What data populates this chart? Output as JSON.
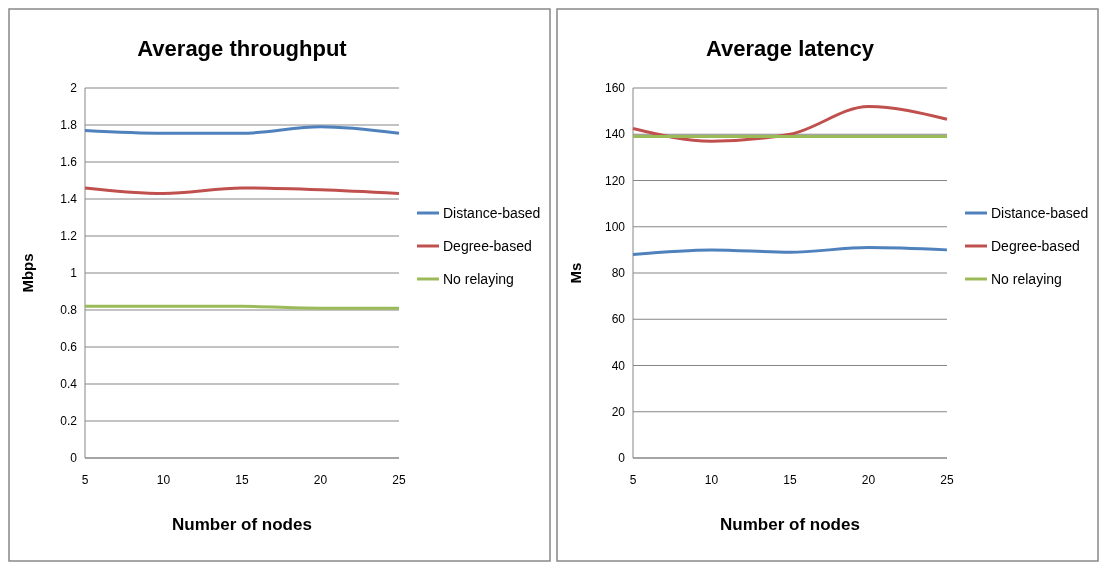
{
  "chart_data": [
    {
      "type": "line",
      "title": "Average throughput",
      "xlabel": "Number of nodes",
      "ylabel": "Mbps",
      "x": [
        5,
        10,
        15,
        20,
        25
      ],
      "xlim": [
        5,
        25
      ],
      "xticks": [
        5,
        10,
        15,
        20,
        25
      ],
      "ylim": [
        0,
        2
      ],
      "yticks": [
        0,
        0.2,
        0.4,
        0.6,
        0.8,
        1,
        1.2,
        1.4,
        1.6,
        1.8,
        2
      ],
      "grid": "y",
      "legend": "right",
      "marker": "none",
      "line_style": "solid",
      "series": [
        {
          "name": "Distance-based",
          "color": "#4f81bd",
          "values": [
            1.77,
            1.755,
            1.755,
            1.79,
            1.755
          ]
        },
        {
          "name": "Degree-based",
          "color": "#c0504d",
          "values": [
            1.46,
            1.43,
            1.46,
            1.45,
            1.43
          ]
        },
        {
          "name": "No relaying",
          "color": "#9bbb59",
          "values": [
            0.82,
            0.82,
            0.82,
            0.81,
            0.81
          ]
        }
      ]
    },
    {
      "type": "line",
      "title": "Average latency",
      "xlabel": "Number of nodes",
      "ylabel": "Ms",
      "x": [
        5,
        10,
        15,
        20,
        25
      ],
      "xlim": [
        5,
        25
      ],
      "xticks": [
        5,
        10,
        15,
        20,
        25
      ],
      "ylim": [
        0,
        160
      ],
      "yticks": [
        0,
        20,
        40,
        60,
        80,
        100,
        120,
        140,
        160
      ],
      "grid": "y",
      "legend": "right",
      "marker": "none",
      "line_style": "solid",
      "series": [
        {
          "name": "Distance-based",
          "color": "#4f81bd",
          "values": [
            88,
            90,
            89,
            91,
            90
          ]
        },
        {
          "name": "Degree-based",
          "color": "#c0504d",
          "values": [
            142.5,
            137,
            140,
            152,
            146.5
          ]
        },
        {
          "name": "No relaying",
          "color": "#9bbb59",
          "values": [
            139,
            139,
            139,
            139,
            139
          ]
        }
      ]
    }
  ]
}
